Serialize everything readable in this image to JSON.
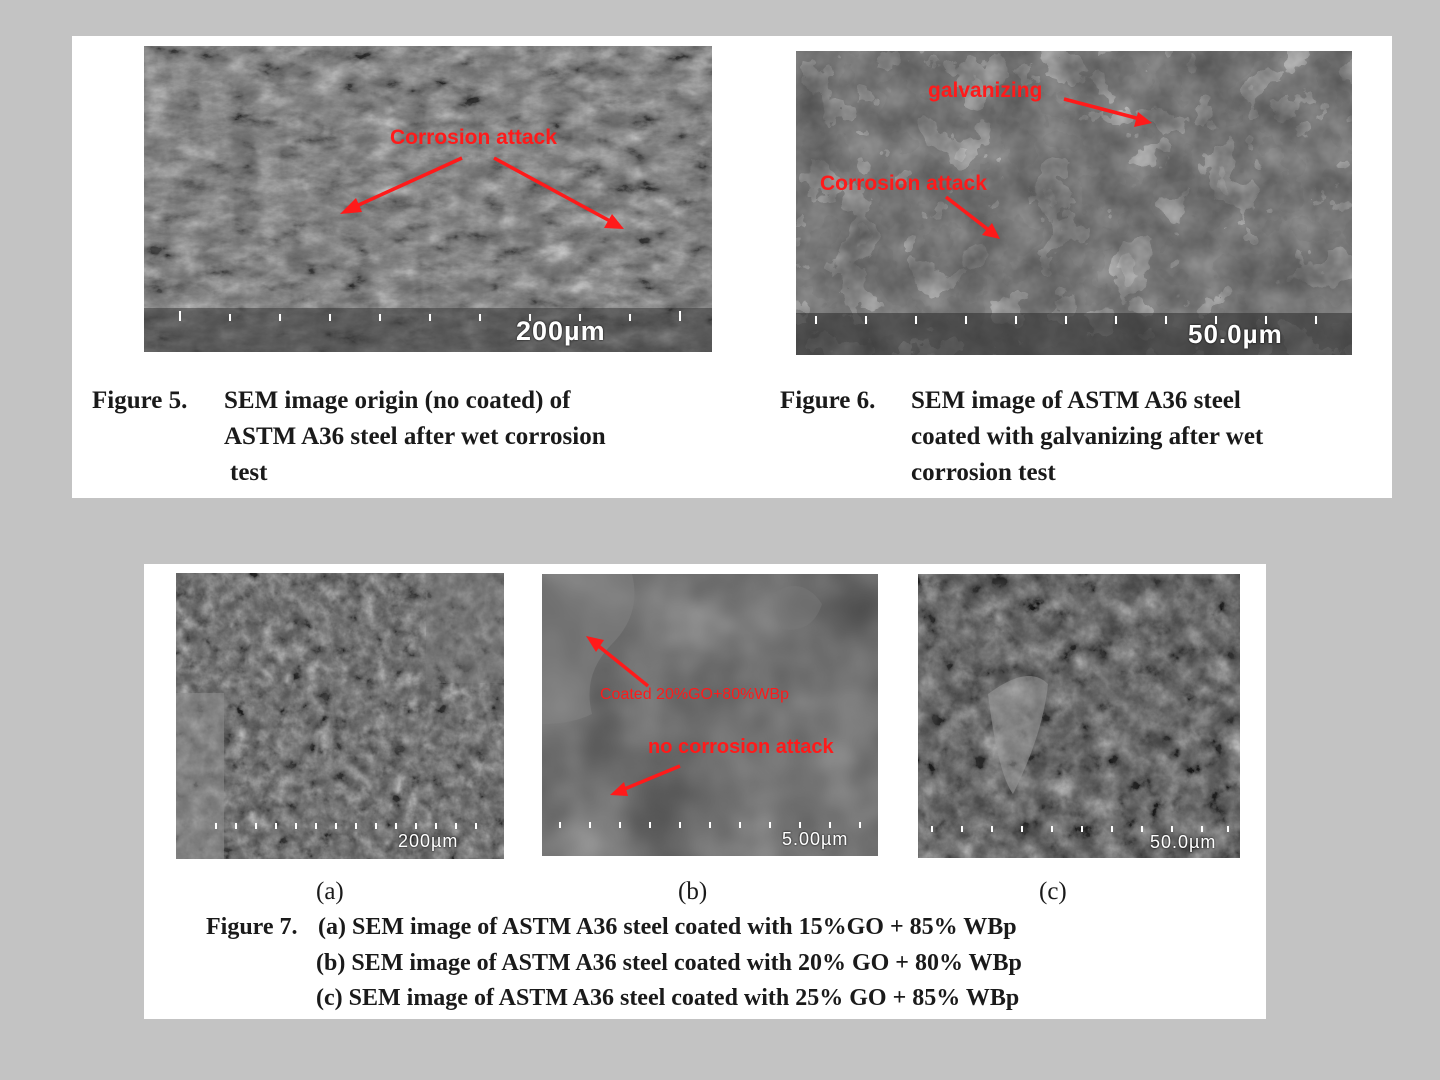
{
  "figure5": {
    "annotation": "Corrosion attack",
    "scale_bar": "200µm",
    "caption_label": "Figure 5.",
    "caption_lines": [
      "SEM image origin (no coated) of",
      "ASTM A36 steel after wet corrosion",
      "test"
    ]
  },
  "figure6": {
    "annotation_top": "galvanizing",
    "annotation_mid": "Corrosion attack",
    "scale_bar": "50.0µm",
    "caption_label": "Figure 6.",
    "caption_lines": [
      "SEM image of ASTM A36 steel",
      "coated with galvanizing after wet",
      "corrosion test"
    ]
  },
  "figure7": {
    "images": [
      {
        "label": "(a)",
        "scale_bar": "200µm"
      },
      {
        "label": "(b)",
        "scale_bar": "5.00µm",
        "annotation_1": "Coated 20%GO+80%WBp",
        "annotation_2": "no corrosion attack"
      },
      {
        "label": "(c)",
        "scale_bar": "50.0µm"
      }
    ],
    "caption_label": "Figure 7.",
    "caption_lines": [
      "(a) SEM image of ASTM A36 steel coated with 15%GO + 85% WBp",
      "(b) SEM image of ASTM A36 steel coated with 20% GO + 80% WBp",
      "(c) SEM image of ASTM A36 steel coated with 25% GO + 85% WBp"
    ]
  },
  "colors": {
    "annotation": "#ff1a1a",
    "background": "#c3c3c3",
    "panel": "#ffffff"
  }
}
